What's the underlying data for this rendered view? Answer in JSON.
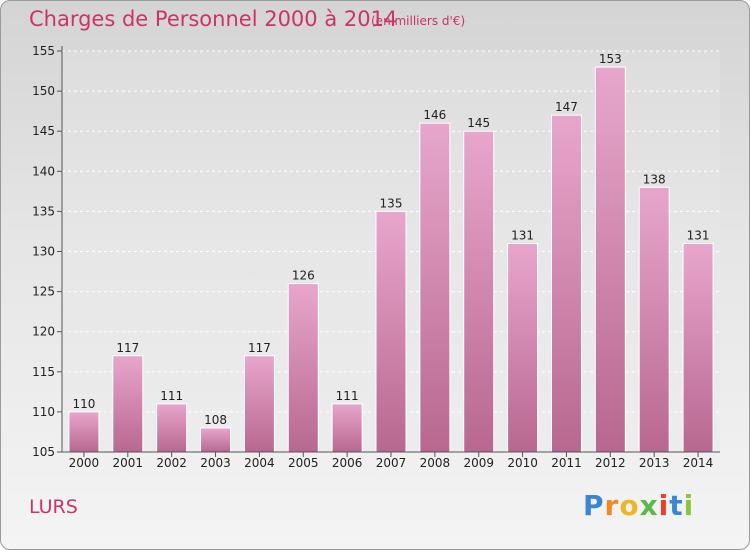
{
  "chart_data": {
    "type": "bar",
    "title": "Charges de Personnel 2000 à 2014",
    "subtitle": "(en milliers d'€)",
    "categories": [
      "2000",
      "2001",
      "2002",
      "2003",
      "2004",
      "2005",
      "2006",
      "2007",
      "2008",
      "2009",
      "2010",
      "2011",
      "2012",
      "2013",
      "2014"
    ],
    "values": [
      110,
      117,
      111,
      108,
      117,
      126,
      111,
      135,
      146,
      145,
      131,
      147,
      153,
      138,
      131
    ],
    "ylim": [
      105,
      155
    ],
    "yticks": [
      105,
      110,
      115,
      120,
      125,
      130,
      135,
      140,
      145,
      150,
      155
    ],
    "grid": true,
    "bar_color_top": "#e8a6cc",
    "bar_color_bottom": "#b8688f"
  },
  "location": "LURS",
  "logo": {
    "text": "Proxiti",
    "letter_colors": [
      "#3a86d4",
      "#f08a24",
      "#f0b428",
      "#5cb848",
      "#e8402c",
      "#3a86d4",
      "#8cc63e"
    ]
  },
  "colors": {
    "title": "#cc3366",
    "axis": "#555555"
  }
}
